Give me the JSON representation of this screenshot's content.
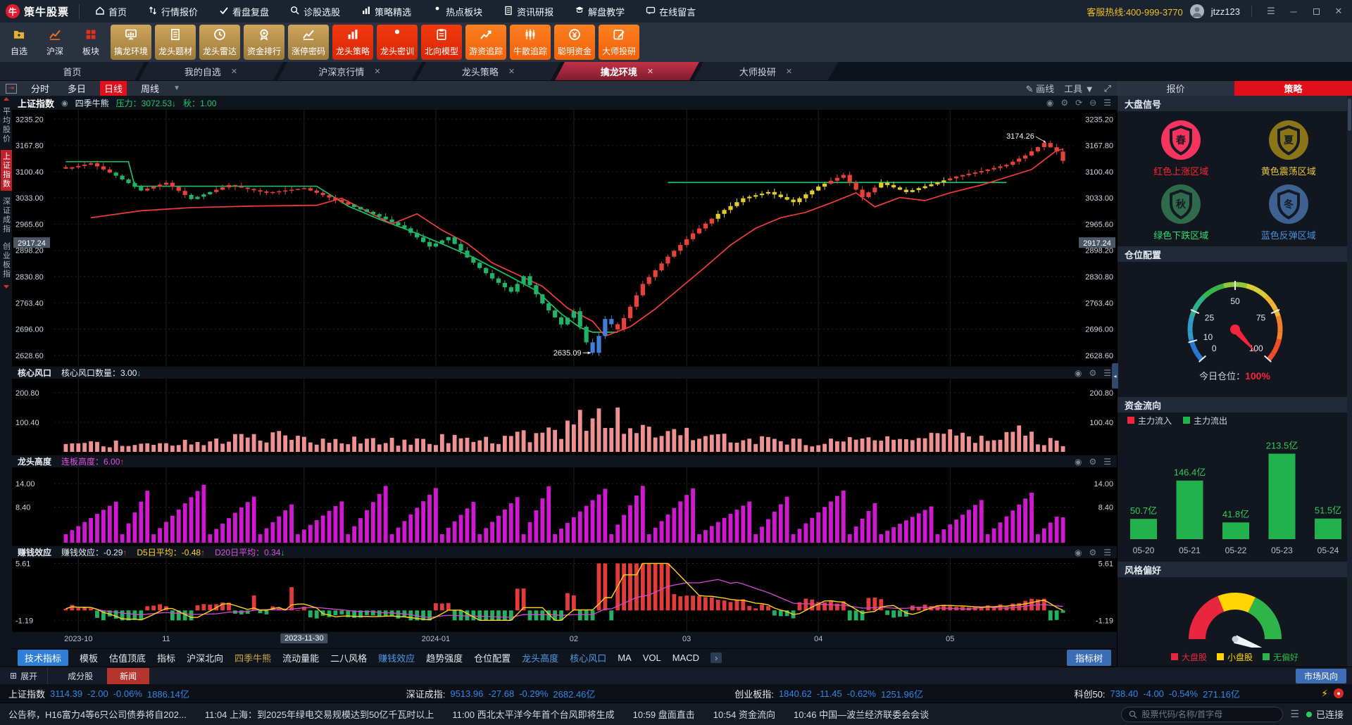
{
  "app": {
    "name": "策牛股票",
    "hotline_label": "客服热线:",
    "hotline": "400-999-3770",
    "user": "jtzz123",
    "connected": "已连接"
  },
  "titlebar_menu": [
    {
      "label": "首页",
      "icon": "home-icon"
    },
    {
      "label": "行情报价",
      "icon": "quotes-icon"
    },
    {
      "label": "看盘复盘",
      "icon": "check-icon"
    },
    {
      "label": "诊股选股",
      "icon": "search-icon"
    },
    {
      "label": "策略精选",
      "icon": "bars-icon"
    },
    {
      "label": "热点板块",
      "icon": "person-icon"
    },
    {
      "label": "资讯研报",
      "icon": "doc-icon"
    },
    {
      "label": "解盘教学",
      "icon": "teach-icon"
    },
    {
      "label": "在线留言",
      "icon": "message-icon"
    }
  ],
  "toolbar": {
    "plain": [
      {
        "label": "自选",
        "icon": "folder-icon",
        "color": "#e8b030"
      },
      {
        "label": "沪深",
        "icon": "chart-icon",
        "color": "#f07020"
      },
      {
        "label": "板块",
        "icon": "grid-icon",
        "color": "#e03020"
      }
    ],
    "buttons": [
      {
        "label": "擒龙环境",
        "icon": "monitor-icon",
        "style": "gold"
      },
      {
        "label": "龙头题材",
        "icon": "doc-icon",
        "style": "gold"
      },
      {
        "label": "龙头雷达",
        "icon": "clock-icon",
        "style": "gold"
      },
      {
        "label": "资金排行",
        "icon": "medal-icon",
        "style": "gold"
      },
      {
        "label": "涨停密码",
        "icon": "chart-icon",
        "style": "gold"
      },
      {
        "label": "龙头策略",
        "icon": "bars-icon",
        "style": "red"
      },
      {
        "label": "龙头密训",
        "icon": "person-icon",
        "style": "red"
      },
      {
        "label": "北向模型",
        "icon": "clipboard-icon",
        "style": "red"
      },
      {
        "label": "游资追踪",
        "icon": "trend-icon",
        "style": "orange"
      },
      {
        "label": "牛散追踪",
        "icon": "candle-icon",
        "style": "orange"
      },
      {
        "label": "聪明资金",
        "icon": "coin-icon",
        "style": "orange"
      },
      {
        "label": "大师投研",
        "icon": "pen-icon",
        "style": "orange"
      }
    ]
  },
  "doc_tabs": [
    {
      "label": "首页",
      "closable": false,
      "active": false
    },
    {
      "label": "我的自选",
      "closable": true,
      "active": false
    },
    {
      "label": "沪深京行情",
      "closable": true,
      "active": false
    },
    {
      "label": "龙头策略",
      "closable": true,
      "active": false
    },
    {
      "label": "擒龙环境",
      "closable": true,
      "active": true
    },
    {
      "label": "大师投研",
      "closable": true,
      "active": false
    }
  ],
  "period_bar": {
    "items": [
      "分时",
      "多日",
      "日线",
      "周线"
    ],
    "active": "日线",
    "draw_label": "画线",
    "tools_label": "工具"
  },
  "right_tabs": {
    "quote": "报价",
    "strategy": "策略"
  },
  "side_strip": [
    {
      "label": "平均股价",
      "active": false
    },
    {
      "label": "上证指数",
      "active": true
    },
    {
      "label": "深证成指",
      "active": false
    },
    {
      "label": "创业板指",
      "active": false
    }
  ],
  "chart_header": {
    "index_name": "上证指数",
    "overlay": "四季牛熊",
    "pressure_label": "压力：",
    "pressure_value": "3072.53",
    "pressure_arrow": "↓",
    "autumn_label": "秋：",
    "autumn_value": "1.00"
  },
  "sub1_header": {
    "name": "核心风口",
    "label": "核心风口数量：",
    "value": "3.00",
    "arrow": "↓"
  },
  "sub2_header": {
    "name": "龙头高度",
    "label": "连板高度：",
    "value": "6.00",
    "arrow": "↑"
  },
  "sub3_header": {
    "name": "赚钱效应",
    "l1": "赚钱效应：",
    "v1": "-0.29",
    "a1": "↑",
    "l2": "D5日平均：",
    "v2": "-0.48",
    "a2": "↑",
    "l3": "D20日平均：",
    "v3": "0.34",
    "a3": "↓"
  },
  "footer_tabs": {
    "items": [
      {
        "label": "技术指标",
        "style": "btn"
      },
      {
        "label": "模板",
        "style": "plain"
      },
      {
        "label": "估值顶底",
        "style": "plain"
      },
      {
        "label": "指标",
        "style": "plain"
      },
      {
        "label": "沪深北向",
        "style": "plain"
      },
      {
        "label": "四季牛熊",
        "style": "gold"
      },
      {
        "label": "流动量能",
        "style": "plain"
      },
      {
        "label": "二八风格",
        "style": "plain"
      },
      {
        "label": "赚钱效应",
        "style": "blue"
      },
      {
        "label": "趋势强度",
        "style": "plain"
      },
      {
        "label": "仓位配置",
        "style": "plain"
      },
      {
        "label": "龙头高度",
        "style": "blue"
      },
      {
        "label": "核心风口",
        "style": "blue"
      },
      {
        "label": "MA",
        "style": "plain"
      },
      {
        "label": "VOL",
        "style": "plain"
      },
      {
        "label": "MACD",
        "style": "plain"
      }
    ],
    "more": "›",
    "tree_btn": "指标树"
  },
  "right_panel": {
    "signals": {
      "title": "大盘信号",
      "items": [
        {
          "char": "春",
          "circle": "#f5335f",
          "label": "红色上涨区域",
          "label_color": "#ff2433"
        },
        {
          "char": "夏",
          "circle": "#8a7518",
          "label": "黄色震荡区域",
          "label_color": "#e8c53a"
        },
        {
          "char": "秋",
          "circle": "#2e6b4a",
          "label": "绿色下跌区域",
          "label_color": "#2edc72"
        },
        {
          "char": "冬",
          "circle": "#3d6292",
          "label": "蓝色反弹区域",
          "label_color": "#4a90d9"
        }
      ]
    },
    "position_gauge": {
      "title": "仓位配置",
      "ticks": [
        0,
        10,
        25,
        50,
        75,
        100
      ],
      "value": 100,
      "caption": "今日仓位：",
      "display": "100%"
    },
    "fund_flow": {
      "title": "资金流向",
      "legend_in": "主力流入",
      "legend_out": "主力流出",
      "dates": [
        "05-20",
        "05-21",
        "05-22",
        "05-23",
        "05-24"
      ],
      "values": [
        50.7,
        146.4,
        41.8,
        213.5,
        51.5
      ],
      "unit": "亿"
    },
    "style_gauge": {
      "title": "风格偏好",
      "legend": [
        {
          "label": "大盘股",
          "color": "#e8273f"
        },
        {
          "label": "小盘股",
          "color": "#ffd400"
        },
        {
          "label": "无偏好",
          "color": "#2db54a"
        }
      ],
      "needle_deg": -20
    }
  },
  "bottom": {
    "expand": "展开",
    "tabs": [
      {
        "label": "成分股",
        "active": false
      },
      {
        "label": "新闻",
        "active": true
      }
    ],
    "market_btn": "市场风向",
    "indices": [
      {
        "name": "上证指数",
        "price": "3114.39",
        "chg": "-2.00",
        "pct": "-0.06%",
        "amt": "1886.14亿"
      },
      {
        "name": "深证成指:",
        "price": "9513.96",
        "chg": "-27.68",
        "pct": "-0.29%",
        "amt": "2682.46亿"
      },
      {
        "name": "创业板指:",
        "price": "1840.62",
        "chg": "-11.45",
        "pct": "-0.62%",
        "amt": "1251.96亿"
      },
      {
        "name": "科创50:",
        "price": "738.40",
        "chg": "-4.00",
        "pct": "-0.54%",
        "amt": "271.16亿"
      }
    ],
    "news": [
      {
        "time": "",
        "text": "公告称，H16富力4等6只公司债券将自202..."
      },
      {
        "time": "11:04",
        "text": "上海：到2025年绿电交易规模达到50亿千瓦时以上"
      },
      {
        "time": "11:00",
        "text": "西北太平洋今年首个台风即将生成"
      },
      {
        "time": "10:59",
        "text": "盘面直击"
      },
      {
        "time": "10:54",
        "text": "资金流向"
      },
      {
        "time": "10:46",
        "text": "中国—波兰经济联委会会谈"
      }
    ],
    "search_placeholder": "股票代码/名称/首字母"
  },
  "chart_data": {
    "type": "candlestick",
    "title": "上证指数 日线 (四季牛熊)",
    "n": 160,
    "y_axis": [
      3235.2,
      3167.8,
      3100.4,
      3033.0,
      2965.6,
      2898.2,
      2830.8,
      2763.4,
      2696.0,
      2628.6
    ],
    "y_range": [
      2612,
      3252
    ],
    "highlight_level": 2917.24,
    "high_annotation": {
      "value": "3174.26",
      "level": 3174.26,
      "i": 156
    },
    "low_annotation": {
      "value": "2635.09",
      "level": 2635.09,
      "i": 84
    },
    "months": [
      {
        "label": "2023-10",
        "i": 2
      },
      {
        "label": "11",
        "i": 16
      },
      {
        "label": "2024-01",
        "i": 59
      },
      {
        "label": "02",
        "i": 81
      },
      {
        "label": "03",
        "i": 99
      },
      {
        "label": "04",
        "i": 120
      },
      {
        "label": "05",
        "i": 141
      }
    ],
    "crosshair": {
      "label": "2023-11-30",
      "i": 38
    },
    "close_anchors": [
      [
        0,
        3108
      ],
      [
        4,
        3122
      ],
      [
        8,
        3090
      ],
      [
        12,
        3052
      ],
      [
        16,
        3072
      ],
      [
        20,
        3030
      ],
      [
        26,
        3066
      ],
      [
        32,
        3046
      ],
      [
        38,
        3058
      ],
      [
        44,
        3022
      ],
      [
        50,
        2985
      ],
      [
        54,
        2955
      ],
      [
        58,
        2908
      ],
      [
        61,
        2932
      ],
      [
        64,
        2880
      ],
      [
        68,
        2826
      ],
      [
        71,
        2792
      ],
      [
        73,
        2832
      ],
      [
        76,
        2762
      ],
      [
        79,
        2708
      ],
      [
        81,
        2742
      ],
      [
        83,
        2662
      ],
      [
        84,
        2635
      ],
      [
        86,
        2722
      ],
      [
        88,
        2695
      ],
      [
        92,
        2812
      ],
      [
        96,
        2882
      ],
      [
        100,
        2942
      ],
      [
        104,
        2992
      ],
      [
        108,
        3032
      ],
      [
        112,
        3048
      ],
      [
        116,
        3022
      ],
      [
        120,
        3062
      ],
      [
        124,
        3092
      ],
      [
        127,
        3035
      ],
      [
        130,
        3072
      ],
      [
        134,
        3048
      ],
      [
        138,
        3068
      ],
      [
        142,
        3088
      ],
      [
        146,
        3102
      ],
      [
        150,
        3118
      ],
      [
        153,
        3142
      ],
      [
        156,
        3174
      ],
      [
        158,
        3152
      ],
      [
        159,
        3128
      ]
    ],
    "season_zones": [
      [
        0,
        8,
        "up"
      ],
      [
        8,
        13,
        "down"
      ],
      [
        13,
        20,
        "up"
      ],
      [
        20,
        24,
        "down"
      ],
      [
        24,
        46,
        "up"
      ],
      [
        46,
        84,
        "down"
      ],
      [
        84,
        88,
        "rebound"
      ],
      [
        88,
        104,
        "up"
      ],
      [
        104,
        122,
        "osc"
      ],
      [
        122,
        130,
        "up"
      ],
      [
        130,
        141,
        "osc"
      ],
      [
        141,
        160,
        "up"
      ]
    ],
    "season_colors": {
      "up": "#e8403a",
      "down": "#21b468",
      "osc": "#e3cb2e",
      "rebound": "#3f80d8"
    },
    "pressure_value": 3072.53,
    "pressure_line": [
      [
        [
          0,
          3126
        ],
        [
          10,
          3126
        ],
        [
          11,
          3063
        ],
        [
          40,
          3063
        ],
        [
          45,
          3012
        ],
        [
          50,
          2978
        ],
        [
          55,
          2948
        ],
        [
          60,
          2915
        ],
        [
          65,
          2880
        ],
        [
          70,
          2838
        ],
        [
          75,
          2795
        ],
        [
          79,
          2735
        ],
        [
          82,
          2700
        ],
        [
          84,
          2688
        ],
        [
          88,
          2688
        ]
      ],
      [
        [
          96,
          3072.53
        ],
        [
          150,
          3072.53
        ]
      ]
    ],
    "trail_line": [
      [
        4,
        2982
      ],
      [
        12,
        3000
      ],
      [
        20,
        3008
      ],
      [
        30,
        3012
      ],
      [
        40,
        3014
      ],
      [
        44,
        3032
      ],
      [
        48,
        2999
      ],
      [
        52,
        2966
      ],
      [
        56,
        2992
      ],
      [
        60,
        2950
      ],
      [
        64,
        2916
      ],
      [
        68,
        2866
      ],
      [
        72,
        2836
      ],
      [
        76,
        2806
      ],
      [
        80,
        2750
      ],
      [
        84,
        2716
      ],
      [
        86,
        2678
      ],
      [
        90,
        2702
      ],
      [
        94,
        2748
      ],
      [
        98,
        2802
      ],
      [
        102,
        2856
      ],
      [
        106,
        2912
      ],
      [
        110,
        2955
      ],
      [
        114,
        2982
      ],
      [
        118,
        2996
      ],
      [
        122,
        3020
      ],
      [
        126,
        3046
      ],
      [
        129,
        3010
      ],
      [
        133,
        3034
      ],
      [
        137,
        3026
      ],
      [
        141,
        3046
      ],
      [
        146,
        3066
      ],
      [
        150,
        3086
      ],
      [
        154,
        3106
      ],
      [
        158,
        3155
      ],
      [
        159,
        3158
      ]
    ],
    "sub1": {
      "name": "核心风口",
      "current": 3.0,
      "y_ticks": [
        200.8,
        100.4
      ],
      "max": 215,
      "envelope": [
        [
          0,
          32
        ],
        [
          8,
          46
        ],
        [
          14,
          36
        ],
        [
          20,
          42
        ],
        [
          26,
          58
        ],
        [
          32,
          88
        ],
        [
          36,
          60
        ],
        [
          42,
          46
        ],
        [
          48,
          56
        ],
        [
          54,
          44
        ],
        [
          60,
          62
        ],
        [
          66,
          52
        ],
        [
          72,
          72
        ],
        [
          78,
          95
        ],
        [
          81,
          135
        ],
        [
          84,
          201
        ],
        [
          86,
          188
        ],
        [
          88,
          158
        ],
        [
          90,
          138
        ],
        [
          93,
          118
        ],
        [
          96,
          96
        ],
        [
          100,
          78
        ],
        [
          104,
          66
        ],
        [
          108,
          58
        ],
        [
          112,
          74
        ],
        [
          116,
          54
        ],
        [
          120,
          48
        ],
        [
          124,
          62
        ],
        [
          128,
          78
        ],
        [
          132,
          58
        ],
        [
          136,
          48
        ],
        [
          140,
          88
        ],
        [
          144,
          58
        ],
        [
          148,
          68
        ],
        [
          152,
          98
        ],
        [
          156,
          58
        ],
        [
          159,
          38
        ]
      ]
    },
    "sub2": {
      "name": "龙头高度",
      "current": 6.0,
      "y_ticks": [
        14.0,
        8.4
      ],
      "max": 15.5,
      "min_height": 2,
      "peak_range": [
        8,
        14
      ]
    },
    "sub3": {
      "name": "赚钱效应",
      "current": -0.29,
      "d5": -0.48,
      "d20": 0.34,
      "y_ticks": [
        5.61,
        -1.19
      ],
      "range": [
        -2.0,
        5.9
      ]
    },
    "fund_flow_chart": {
      "type": "bar",
      "categories": [
        "05-20",
        "05-21",
        "05-22",
        "05-23",
        "05-24"
      ],
      "values": [
        50.7,
        146.4,
        41.8,
        213.5,
        51.5
      ],
      "unit": "亿",
      "bar_color": "#22b14c",
      "ylim": [
        0,
        225
      ]
    }
  }
}
